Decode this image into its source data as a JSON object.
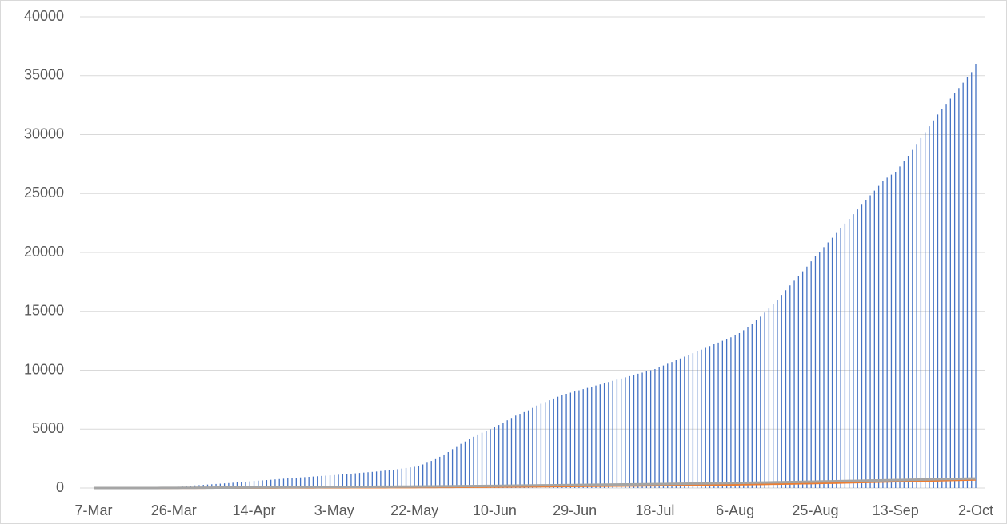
{
  "chart_data": {
    "type": "hilo",
    "categories": [
      "7-Mar",
      null,
      null,
      null,
      null,
      null,
      null,
      null,
      null,
      null,
      null,
      null,
      null,
      null,
      null,
      null,
      null,
      null,
      null,
      "26-Mar",
      null,
      null,
      null,
      null,
      null,
      null,
      null,
      null,
      null,
      null,
      null,
      null,
      null,
      null,
      null,
      null,
      null,
      null,
      "14-Apr",
      null,
      null,
      null,
      null,
      null,
      null,
      null,
      null,
      null,
      null,
      null,
      null,
      null,
      null,
      null,
      null,
      null,
      null,
      "3-May",
      null,
      null,
      null,
      null,
      null,
      null,
      null,
      null,
      null,
      null,
      null,
      null,
      null,
      null,
      null,
      null,
      null,
      null,
      "22-May",
      null,
      null,
      null,
      null,
      null,
      null,
      null,
      null,
      null,
      null,
      null,
      null,
      null,
      null,
      null,
      null,
      null,
      null,
      "10-Jun",
      null,
      null,
      null,
      null,
      null,
      null,
      null,
      null,
      null,
      null,
      null,
      null,
      null,
      null,
      null,
      null,
      null,
      null,
      "29-Jun",
      null,
      null,
      null,
      null,
      null,
      null,
      null,
      null,
      null,
      null,
      null,
      null,
      null,
      null,
      null,
      null,
      null,
      null,
      "18-Jul",
      null,
      null,
      null,
      null,
      null,
      null,
      null,
      null,
      null,
      null,
      null,
      null,
      null,
      null,
      null,
      null,
      null,
      null,
      "6-Aug",
      null,
      null,
      null,
      null,
      null,
      null,
      null,
      null,
      null,
      null,
      null,
      null,
      null,
      null,
      null,
      null,
      null,
      null,
      "25-Aug",
      null,
      null,
      null,
      null,
      null,
      null,
      null,
      null,
      null,
      null,
      null,
      null,
      null,
      null,
      null,
      null,
      null,
      null,
      "13-Sep",
      null,
      null,
      null,
      null,
      null,
      null,
      null,
      null,
      null,
      null,
      null,
      null,
      null,
      null,
      null,
      null,
      null,
      null,
      "2-Oct"
    ],
    "series": [
      {
        "color": "#4472c4",
        "values": [
          0,
          1,
          2,
          3,
          5,
          7,
          9,
          12,
          15,
          18,
          22,
          27,
          32,
          38,
          45,
          52,
          60,
          70,
          85,
          100,
          120,
          145,
          170,
          195,
          220,
          245,
          270,
          295,
          320,
          345,
          370,
          395,
          420,
          450,
          480,
          510,
          540,
          570,
          600,
          625,
          650,
          675,
          700,
          730,
          760,
          790,
          820,
          850,
          875,
          900,
          925,
          950,
          975,
          1000,
          1025,
          1050,
          1075,
          1100,
          1130,
          1160,
          1190,
          1220,
          1250,
          1280,
          1310,
          1340,
          1370,
          1400,
          1440,
          1480,
          1520,
          1560,
          1600,
          1650,
          1700,
          1750,
          1800,
          1900,
          2000,
          2150,
          2300,
          2450,
          2650,
          2850,
          3050,
          3300,
          3550,
          3750,
          3950,
          4150,
          4350,
          4550,
          4700,
          4850,
          5000,
          5150,
          5350,
          5550,
          5750,
          5950,
          6150,
          6300,
          6450,
          6600,
          6800,
          7000,
          7150,
          7300,
          7450,
          7600,
          7750,
          7900,
          8000,
          8100,
          8200,
          8300,
          8400,
          8500,
          8600,
          8700,
          8800,
          8900,
          9000,
          9100,
          9200,
          9300,
          9400,
          9500,
          9600,
          9700,
          9800,
          9900,
          10000,
          10100,
          10250,
          10400,
          10550,
          10700,
          10850,
          11000,
          11150,
          11300,
          11450,
          11600,
          11750,
          11900,
          12050,
          12200,
          12350,
          12500,
          12650,
          12800,
          12950,
          13150,
          13400,
          13650,
          13950,
          14250,
          14550,
          14900,
          15250,
          15600,
          16000,
          16400,
          16800,
          17200,
          17600,
          18000,
          18400,
          18800,
          19250,
          19700,
          20050,
          20450,
          20850,
          21250,
          21650,
          22050,
          22450,
          22850,
          23250,
          23650,
          24050,
          24450,
          24850,
          25250,
          25650,
          26050,
          26350,
          26600,
          26850,
          27300,
          27750,
          28200,
          28700,
          29200,
          29700,
          30200,
          30700,
          31200,
          31700,
          32150,
          32600,
          33050,
          33500,
          33950,
          34400,
          34850,
          35300,
          36000
        ]
      },
      {
        "color": "#ed7d31",
        "values": [
          0,
          0,
          0,
          0,
          0,
          0,
          0,
          0,
          0,
          0,
          0,
          1,
          1,
          1,
          2,
          2,
          3,
          3,
          4,
          5,
          6,
          7,
          8,
          9,
          10,
          11,
          12,
          13,
          14,
          15,
          16,
          17,
          18,
          19,
          20,
          21,
          22,
          23,
          24,
          25,
          26,
          27,
          28,
          29,
          30,
          31,
          32,
          33,
          34,
          35,
          36,
          37,
          38,
          39,
          40,
          41,
          42,
          43,
          44,
          45,
          46,
          47,
          48,
          49,
          50,
          51,
          52,
          53,
          54,
          55,
          56,
          57,
          58,
          59,
          60,
          61,
          62,
          64,
          66,
          68,
          70,
          72,
          74,
          76,
          78,
          80,
          82,
          84,
          86,
          88,
          90,
          92,
          94,
          96,
          98,
          100,
          103,
          106,
          109,
          112,
          115,
          118,
          121,
          124,
          127,
          130,
          133,
          136,
          139,
          142,
          145,
          148,
          151,
          154,
          157,
          160,
          163,
          166,
          169,
          172,
          175,
          178,
          181,
          184,
          187,
          190,
          193,
          196,
          199,
          202,
          205,
          208,
          211,
          214,
          218,
          222,
          226,
          230,
          234,
          238,
          242,
          246,
          250,
          254,
          258,
          262,
          266,
          270,
          274,
          278,
          282,
          286,
          290,
          296,
          302,
          308,
          314,
          320,
          326,
          332,
          338,
          344,
          350,
          356,
          362,
          368,
          374,
          380,
          386,
          392,
          398,
          404,
          412,
          420,
          428,
          436,
          444,
          452,
          460,
          468,
          476,
          484,
          492,
          500,
          508,
          516,
          524,
          532,
          540,
          548,
          556,
          564,
          572,
          580,
          588,
          596,
          604,
          612,
          620,
          628,
          636,
          644,
          652,
          660,
          668,
          676,
          684,
          692,
          700,
          708
        ]
      },
      {
        "color": "#a5a5a5",
        "values": [
          0,
          0,
          0,
          0,
          0,
          0,
          0,
          0,
          0,
          1,
          1,
          1,
          2,
          2,
          3,
          4,
          5,
          6,
          8,
          10,
          12,
          14,
          16,
          18,
          20,
          22,
          24,
          26,
          28,
          30,
          32,
          34,
          36,
          38,
          40,
          42,
          44,
          46,
          48,
          50,
          52,
          54,
          56,
          58,
          60,
          62,
          64,
          66,
          68,
          70,
          72,
          74,
          76,
          78,
          80,
          82,
          84,
          86,
          88,
          90,
          92,
          94,
          96,
          98,
          100,
          102,
          104,
          106,
          108,
          110,
          112,
          114,
          116,
          118,
          120,
          122,
          124,
          127,
          130,
          133,
          136,
          139,
          142,
          145,
          148,
          151,
          154,
          157,
          160,
          163,
          166,
          169,
          172,
          175,
          178,
          181,
          185,
          189,
          193,
          197,
          201,
          205,
          209,
          213,
          217,
          221,
          225,
          229,
          233,
          237,
          241,
          245,
          249,
          253,
          257,
          261,
          265,
          269,
          273,
          277,
          281,
          285,
          289,
          293,
          297,
          301,
          305,
          309,
          313,
          317,
          321,
          325,
          329,
          333,
          338,
          343,
          348,
          353,
          358,
          363,
          368,
          373,
          378,
          383,
          388,
          393,
          398,
          403,
          408,
          413,
          418,
          423,
          428,
          434,
          440,
          446,
          452,
          458,
          464,
          470,
          476,
          482,
          488,
          494,
          500,
          506,
          512,
          518,
          524,
          530,
          536,
          542,
          549,
          556,
          563,
          570,
          577,
          584,
          591,
          598,
          605,
          612,
          619,
          626,
          633,
          640,
          647,
          654,
          661,
          668,
          675,
          682,
          689,
          696,
          703,
          710,
          717,
          724,
          731,
          738,
          745,
          752,
          759,
          766,
          773,
          780,
          787,
          794,
          801,
          808
        ]
      }
    ],
    "ylim": [
      0,
      40000
    ],
    "yticks": [
      0,
      5000,
      10000,
      15000,
      20000,
      25000,
      30000,
      35000,
      40000
    ],
    "grid": true
  }
}
